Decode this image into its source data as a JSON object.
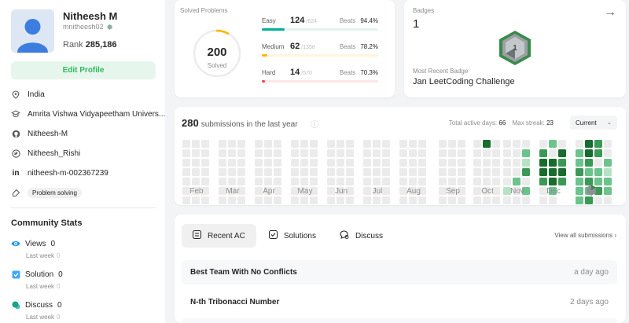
{
  "profile": {
    "name": "Nitheesh M",
    "username": "mnitheesh02",
    "rank_label": "Rank",
    "rank_value": "285,186",
    "edit_label": "Edit Profile",
    "info": [
      {
        "icon": "location-icon",
        "text": "India"
      },
      {
        "icon": "school-icon",
        "text": "Amrita Vishwa Vidyapeetham Univers..."
      },
      {
        "icon": "github-icon",
        "text": "Nitheesh-M"
      },
      {
        "icon": "twitter-icon",
        "text": "Nitheesh_Rishi"
      },
      {
        "icon": "linkedin-icon",
        "text": "nitheesh-m-002367239"
      }
    ],
    "skill_tag": "Problem solving"
  },
  "community": {
    "title": "Community Stats",
    "stats": [
      {
        "label": "Views",
        "value": "0",
        "sub_label": "Last week",
        "sub_value": "0",
        "color": "#1890ff"
      },
      {
        "label": "Solution",
        "value": "0",
        "sub_label": "Last week",
        "sub_value": "0",
        "color": "#40a9ff"
      },
      {
        "label": "Discuss",
        "value": "0",
        "sub_label": "Last week",
        "sub_value": "0",
        "color": "#14a38b"
      }
    ]
  },
  "solved": {
    "title": "Solved Problems",
    "total": "200",
    "total_label": "Solved",
    "difficulties": [
      {
        "name": "Easy",
        "count": "124",
        "total": "/624",
        "beats_label": "Beats",
        "beats": "94.4%",
        "fraction": 0.199,
        "color": "#00af9b",
        "track": "#e1f5ef"
      },
      {
        "name": "Medium",
        "count": "62",
        "total": "/1358",
        "beats_label": "Beats",
        "beats": "78.2%",
        "fraction": 0.046,
        "color": "#ffb800",
        "track": "#fff4dc"
      },
      {
        "name": "Hard",
        "count": "14",
        "total": "/570",
        "beats_label": "Beats",
        "beats": "70.3%",
        "fraction": 0.025,
        "color": "#ef4743",
        "track": "#fde6e6"
      }
    ]
  },
  "badges": {
    "title": "Badges",
    "count": "1",
    "recent_label": "Most Recent Badge",
    "recent_name": "Jan LeetCoding Challenge"
  },
  "calendar": {
    "count": "280",
    "subtitle": "submissions in the last year",
    "active_label": "Total active days:",
    "active_value": "66",
    "streak_label": "Max streak:",
    "streak_value": "23",
    "select_value": "Current",
    "months": [
      "Feb",
      "Mar",
      "Apr",
      "May",
      "Jun",
      "Jul",
      "Aug",
      "Sep",
      "Oct",
      "Nov",
      "Dec",
      "Jan"
    ],
    "colors": {
      "empty": "#ebebeb",
      "l1": "#b6e3c6",
      "l2": "#6cc48c",
      "l3": "#3a9a55",
      "l4": "#196c2e"
    }
  },
  "tabs": [
    {
      "label": "Recent AC",
      "icon": "list-icon"
    },
    {
      "label": "Solutions",
      "icon": "solution-icon"
    },
    {
      "label": "Discuss",
      "icon": "discuss-icon"
    }
  ],
  "view_all": "View all submissions",
  "submissions": [
    {
      "title": "Best Team With No Conflicts",
      "time": "a day ago"
    },
    {
      "title": "N-th Tribonacci Number",
      "time": "2 days ago"
    }
  ]
}
